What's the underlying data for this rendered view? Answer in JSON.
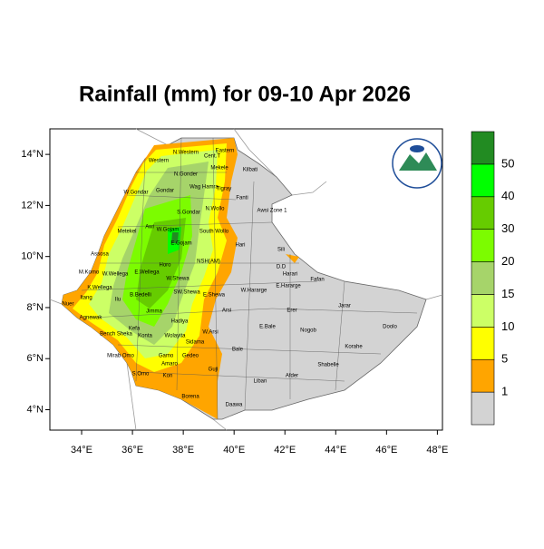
{
  "chart_data": {
    "type": "map",
    "title": "Rainfall (mm) for 09-10 Apr 2026",
    "xlim": [
      32.75,
      48.2
    ],
    "ylim": [
      3.2,
      15.0
    ],
    "xticks": [
      {
        "value": 34,
        "label": "34°E"
      },
      {
        "value": 36,
        "label": "36°E"
      },
      {
        "value": 38,
        "label": "38°E"
      },
      {
        "value": 40,
        "label": "40°E"
      },
      {
        "value": 42,
        "label": "42°E"
      },
      {
        "value": 44,
        "label": "44°E"
      },
      {
        "value": 46,
        "label": "46°E"
      },
      {
        "value": 48,
        "label": "48°E"
      }
    ],
    "yticks": [
      {
        "value": 4,
        "label": "4°N"
      },
      {
        "value": 6,
        "label": "6°N"
      },
      {
        "value": 8,
        "label": "8°N"
      },
      {
        "value": 10,
        "label": "10°N"
      },
      {
        "value": 12,
        "label": "12°N"
      },
      {
        "value": 14,
        "label": "14°N"
      }
    ],
    "colorbar": {
      "levels": [
        1,
        5,
        10,
        15,
        20,
        30,
        40,
        50
      ],
      "colors": [
        "#d3d3d3",
        "#ffa500",
        "#ffff00",
        "#ccff66",
        "#a6d46a",
        "#7cfc00",
        "#66cc00",
        "#00ff00",
        "#228b22"
      ]
    },
    "region_labels": [
      "N.Western",
      "Cent.T",
      "Eastern",
      "Western",
      "Mekele",
      "Kilbati",
      "N.Gonder",
      "Wag Hamra",
      "Tigray",
      "W.Gondar",
      "Gondar",
      "Fanti",
      "Awsi Zone 1",
      "S.Gondar",
      "N.Wollo",
      "Metekel",
      "Awi",
      "W.Gojam",
      "South Wollo",
      "E.Gojam",
      "Hari",
      "Sili",
      "Assosa",
      "Horo",
      "NSH(AM)",
      "D.D",
      "Harari",
      "M.Komo",
      "W.Wellega",
      "E.Wellega",
      "W.Shewa",
      "Fafan",
      "K.Wellega",
      "B.Bedelli",
      "SW.Shewa",
      "E.Shewa",
      "W.Hararge",
      "E.Hararge",
      "Jarar",
      "Ilu",
      "Arsi",
      "Erer",
      "Agnewak",
      "Jimma",
      "Hadiya",
      "Nuer",
      "Itang",
      "Kefa",
      "W.Arsi",
      "E.Bale",
      "Nogob",
      "Doolo",
      "Bench Sheka",
      "Konta",
      "Wolayita",
      "Bale",
      "Korahe",
      "Gamo",
      "Sidama",
      "Shabelle",
      "Mirab Omo",
      "Gedeo",
      "S.Omo",
      "Amaro",
      "Guji",
      "Liban",
      "Afder",
      "Borena",
      "Daawa",
      "Kon"
    ]
  }
}
